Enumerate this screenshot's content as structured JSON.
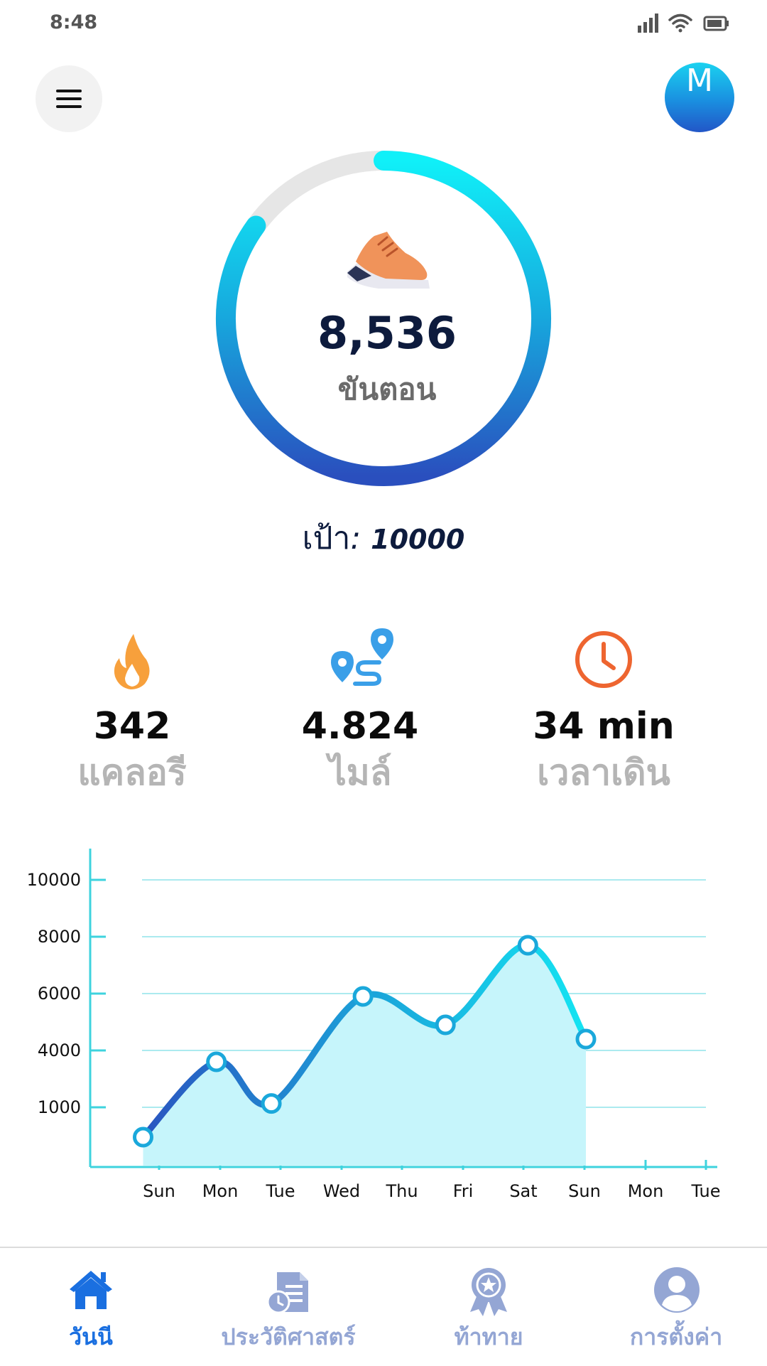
{
  "status_bar": {
    "time": "8:48"
  },
  "header": {
    "avatar_letter": "M"
  },
  "steps": {
    "count": "8,536",
    "label": "ขันตอน",
    "progress_fraction": 0.85
  },
  "goal": {
    "label": "เป้า",
    "separator": ":",
    "value": "10000"
  },
  "stats": [
    {
      "value": "342",
      "label": "แคลอรี",
      "icon": "flame-icon"
    },
    {
      "value": "4.824",
      "label": "ไมล์",
      "icon": "route-map-pin-icon"
    },
    {
      "value": "34 min",
      "label": "เวลาเดิน",
      "icon": "clock-icon"
    }
  ],
  "chart_data": {
    "type": "area",
    "x": [
      "Sun",
      "Mon",
      "Tue",
      "Wed",
      "Thu",
      "Fri",
      "Sat",
      "Sun",
      "Mon",
      "Tue"
    ],
    "y_ticks": [
      "10000",
      "8000",
      "6000",
      "4000",
      "1000"
    ],
    "points": [
      {
        "x_pos": 0.5,
        "value": 500
      },
      {
        "x_pos": 2.9,
        "value": 3400
      },
      {
        "x_pos": 4.7,
        "value": 1200
      },
      {
        "x_pos": 7.7,
        "value": 5900
      },
      {
        "x_pos": 10.4,
        "value": 4900
      },
      {
        "x_pos": 13.1,
        "value": 7700
      },
      {
        "x_pos": 15.0,
        "value": 4400
      }
    ],
    "x_tick_span": 16,
    "line_colors": [
      "#2a55c0",
      "#1aa8db",
      "#14e4f2"
    ],
    "fill_color": "#c6f5fb",
    "grid": true
  },
  "nav": [
    {
      "label": "วันนี",
      "icon": "home-icon",
      "active": true
    },
    {
      "label": "ประวัติศาสตร์",
      "icon": "history-document-icon",
      "active": false
    },
    {
      "label": "ท้าทาย",
      "icon": "award-badge-icon",
      "active": false
    },
    {
      "label": "การตั้งค่า",
      "icon": "profile-icon",
      "active": false
    }
  ],
  "colors": {
    "active_nav": "#1a6fe0",
    "inactive_nav": "#94a6d4",
    "text_dark": "#0d1b3d"
  }
}
